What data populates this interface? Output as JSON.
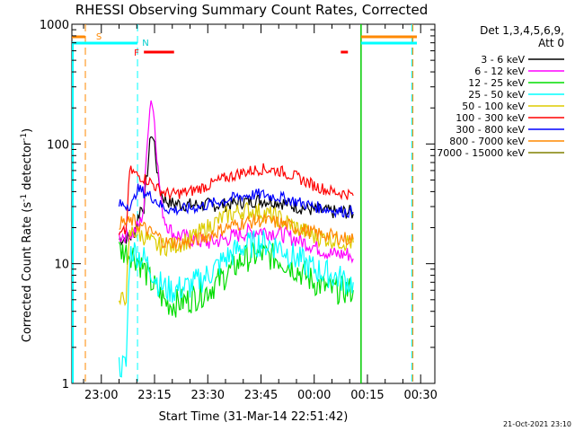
{
  "chart_data": {
    "type": "line",
    "title": "RHESSI Observing Summary Count Rates, Corrected",
    "xlabel": "Start Time (31-Mar-14 22:51:42)",
    "ylabel_main": "Corrected Count Rate (s",
    "ylabel_sup1": "-1",
    "ylabel_mid": " detector",
    "ylabel_sup2": "-1",
    "ylabel_end": ")",
    "y_scale": "log",
    "ylim": [
      1,
      1000
    ],
    "xlim_minutes_from_2300": [
      -8.3,
      32.2
    ],
    "y_ticks": [
      {
        "value": 1,
        "label": "1"
      },
      {
        "value": 10,
        "label": "10"
      },
      {
        "value": 100,
        "label": "100"
      },
      {
        "value": 1000,
        "label": "1000"
      }
    ],
    "x_ticks": [
      {
        "t": 0,
        "label": "23:00"
      },
      {
        "t": 15,
        "label": "23:15"
      },
      {
        "t": 30,
        "label": "23:30"
      },
      {
        "t": 45,
        "label": "23:45"
      },
      {
        "t": 60,
        "label": "00:00"
      },
      {
        "t": 75,
        "label": "00:15"
      },
      {
        "t": 90,
        "label": "00:30"
      }
    ],
    "legend_header": [
      "Det 1,3,4,5,6,9,",
      "Att 0"
    ],
    "legend_position": "right",
    "series": [
      {
        "name": "3 - 6 keV",
        "color": "#000000",
        "points": [
          [
            5,
            16
          ],
          [
            9,
            17
          ],
          [
            10,
            22
          ],
          [
            11,
            29
          ],
          [
            12,
            30
          ],
          [
            13,
            60
          ],
          [
            14,
            125
          ],
          [
            15,
            100
          ],
          [
            16,
            50
          ],
          [
            17,
            38
          ],
          [
            18,
            34
          ],
          [
            20,
            32
          ],
          [
            25,
            31
          ],
          [
            30,
            31
          ],
          [
            35,
            31
          ],
          [
            40,
            33
          ],
          [
            45,
            34
          ],
          [
            50,
            33
          ],
          [
            55,
            30
          ],
          [
            60,
            28
          ],
          [
            65,
            27
          ],
          [
            70,
            27
          ],
          [
            71,
            26
          ]
        ]
      },
      {
        "name": "6 - 12 keV",
        "color": "#ff00ff",
        "points": [
          [
            5,
            17
          ],
          [
            9,
            18
          ],
          [
            10,
            20
          ],
          [
            11,
            22
          ],
          [
            12,
            30
          ],
          [
            13,
            120
          ],
          [
            14,
            250
          ],
          [
            15,
            160
          ],
          [
            16,
            60
          ],
          [
            17,
            30
          ],
          [
            18,
            23
          ],
          [
            20,
            18
          ],
          [
            25,
            16
          ],
          [
            30,
            15
          ],
          [
            35,
            16
          ],
          [
            40,
            18
          ],
          [
            45,
            19
          ],
          [
            50,
            18
          ],
          [
            55,
            16
          ],
          [
            60,
            14
          ],
          [
            65,
            12
          ],
          [
            70,
            12
          ],
          [
            71,
            11
          ]
        ]
      },
      {
        "name": "12 - 25 keV",
        "color": "#00dd00",
        "points": [
          [
            5,
            13
          ],
          [
            9,
            12
          ],
          [
            10,
            11
          ],
          [
            12,
            9
          ],
          [
            14,
            7
          ],
          [
            16,
            5.8
          ],
          [
            18,
            4.8
          ],
          [
            20,
            4.6
          ],
          [
            25,
            5
          ],
          [
            30,
            6
          ],
          [
            35,
            8
          ],
          [
            40,
            11
          ],
          [
            45,
            12
          ],
          [
            50,
            11
          ],
          [
            55,
            9
          ],
          [
            60,
            7
          ],
          [
            65,
            6
          ],
          [
            70,
            6
          ],
          [
            71,
            6
          ]
        ]
      },
      {
        "name": "25 - 50 keV",
        "color": "#00ffff",
        "points": [
          [
            5,
            1.4
          ],
          [
            6,
            1.4
          ],
          [
            7,
            1.4
          ],
          [
            8,
            12
          ],
          [
            9,
            13
          ],
          [
            10,
            12
          ],
          [
            12,
            11
          ],
          [
            14,
            9
          ],
          [
            16,
            7
          ],
          [
            18,
            6.2
          ],
          [
            20,
            6
          ],
          [
            25,
            6.5
          ],
          [
            30,
            8
          ],
          [
            35,
            11
          ],
          [
            40,
            14
          ],
          [
            45,
            15
          ],
          [
            50,
            14
          ],
          [
            55,
            11
          ],
          [
            60,
            9
          ],
          [
            65,
            8
          ],
          [
            70,
            7
          ],
          [
            71,
            7
          ]
        ]
      },
      {
        "name": "50 - 100 keV",
        "color": "#ddcc00",
        "points": [
          [
            5,
            4.5
          ],
          [
            6,
            5
          ],
          [
            7,
            5.5
          ],
          [
            8,
            17
          ],
          [
            9,
            19
          ],
          [
            10,
            18
          ],
          [
            12,
            17
          ],
          [
            14,
            15
          ],
          [
            16,
            14
          ],
          [
            18,
            14
          ],
          [
            20,
            14
          ],
          [
            25,
            16
          ],
          [
            30,
            20
          ],
          [
            35,
            25
          ],
          [
            40,
            28
          ],
          [
            45,
            27
          ],
          [
            50,
            24
          ],
          [
            55,
            20
          ],
          [
            60,
            17
          ],
          [
            65,
            16
          ],
          [
            70,
            15
          ],
          [
            71,
            15
          ]
        ]
      },
      {
        "name": "100 - 300 keV",
        "color": "#ff0000",
        "points": [
          [
            5,
            17
          ],
          [
            6,
            18
          ],
          [
            7,
            19
          ],
          [
            8,
            60
          ],
          [
            9,
            58
          ],
          [
            10,
            55
          ],
          [
            12,
            52
          ],
          [
            14,
            48
          ],
          [
            16,
            42
          ],
          [
            18,
            39
          ],
          [
            20,
            38
          ],
          [
            25,
            40
          ],
          [
            30,
            45
          ],
          [
            35,
            52
          ],
          [
            40,
            58
          ],
          [
            45,
            62
          ],
          [
            50,
            60
          ],
          [
            55,
            53
          ],
          [
            60,
            45
          ],
          [
            65,
            40
          ],
          [
            70,
            38
          ],
          [
            71,
            37
          ]
        ]
      },
      {
        "name": "300 - 800 keV",
        "color": "#0000ff",
        "points": [
          [
            5,
            31
          ],
          [
            8,
            31
          ],
          [
            9,
            32
          ],
          [
            10,
            42
          ],
          [
            11,
            41
          ],
          [
            13,
            38
          ],
          [
            15,
            35
          ],
          [
            17,
            30
          ],
          [
            20,
            28
          ],
          [
            25,
            29
          ],
          [
            30,
            31
          ],
          [
            35,
            34
          ],
          [
            40,
            37
          ],
          [
            45,
            38
          ],
          [
            50,
            36
          ],
          [
            55,
            33
          ],
          [
            60,
            30
          ],
          [
            65,
            28
          ],
          [
            70,
            27
          ],
          [
            71,
            27
          ]
        ]
      },
      {
        "name": "800 - 7000 keV",
        "color": "#ff8800",
        "points": [
          [
            5,
            22
          ],
          [
            8,
            22
          ],
          [
            9,
            23
          ],
          [
            10,
            21
          ],
          [
            12,
            20
          ],
          [
            14,
            18
          ],
          [
            16,
            17
          ],
          [
            18,
            15
          ],
          [
            20,
            15
          ],
          [
            25,
            15
          ],
          [
            30,
            17
          ],
          [
            35,
            20
          ],
          [
            40,
            22
          ],
          [
            45,
            23
          ],
          [
            50,
            22
          ],
          [
            55,
            20
          ],
          [
            60,
            18
          ],
          [
            65,
            17
          ],
          [
            70,
            16
          ],
          [
            71,
            16
          ]
        ]
      },
      {
        "name": "7000 - 15000 keV",
        "color": "#808000",
        "points": []
      }
    ],
    "annotations": {
      "flag_S": "S",
      "flag_N": "N",
      "flag_F": "F"
    }
  },
  "footer_date": "21-Oct-2021 23:10"
}
